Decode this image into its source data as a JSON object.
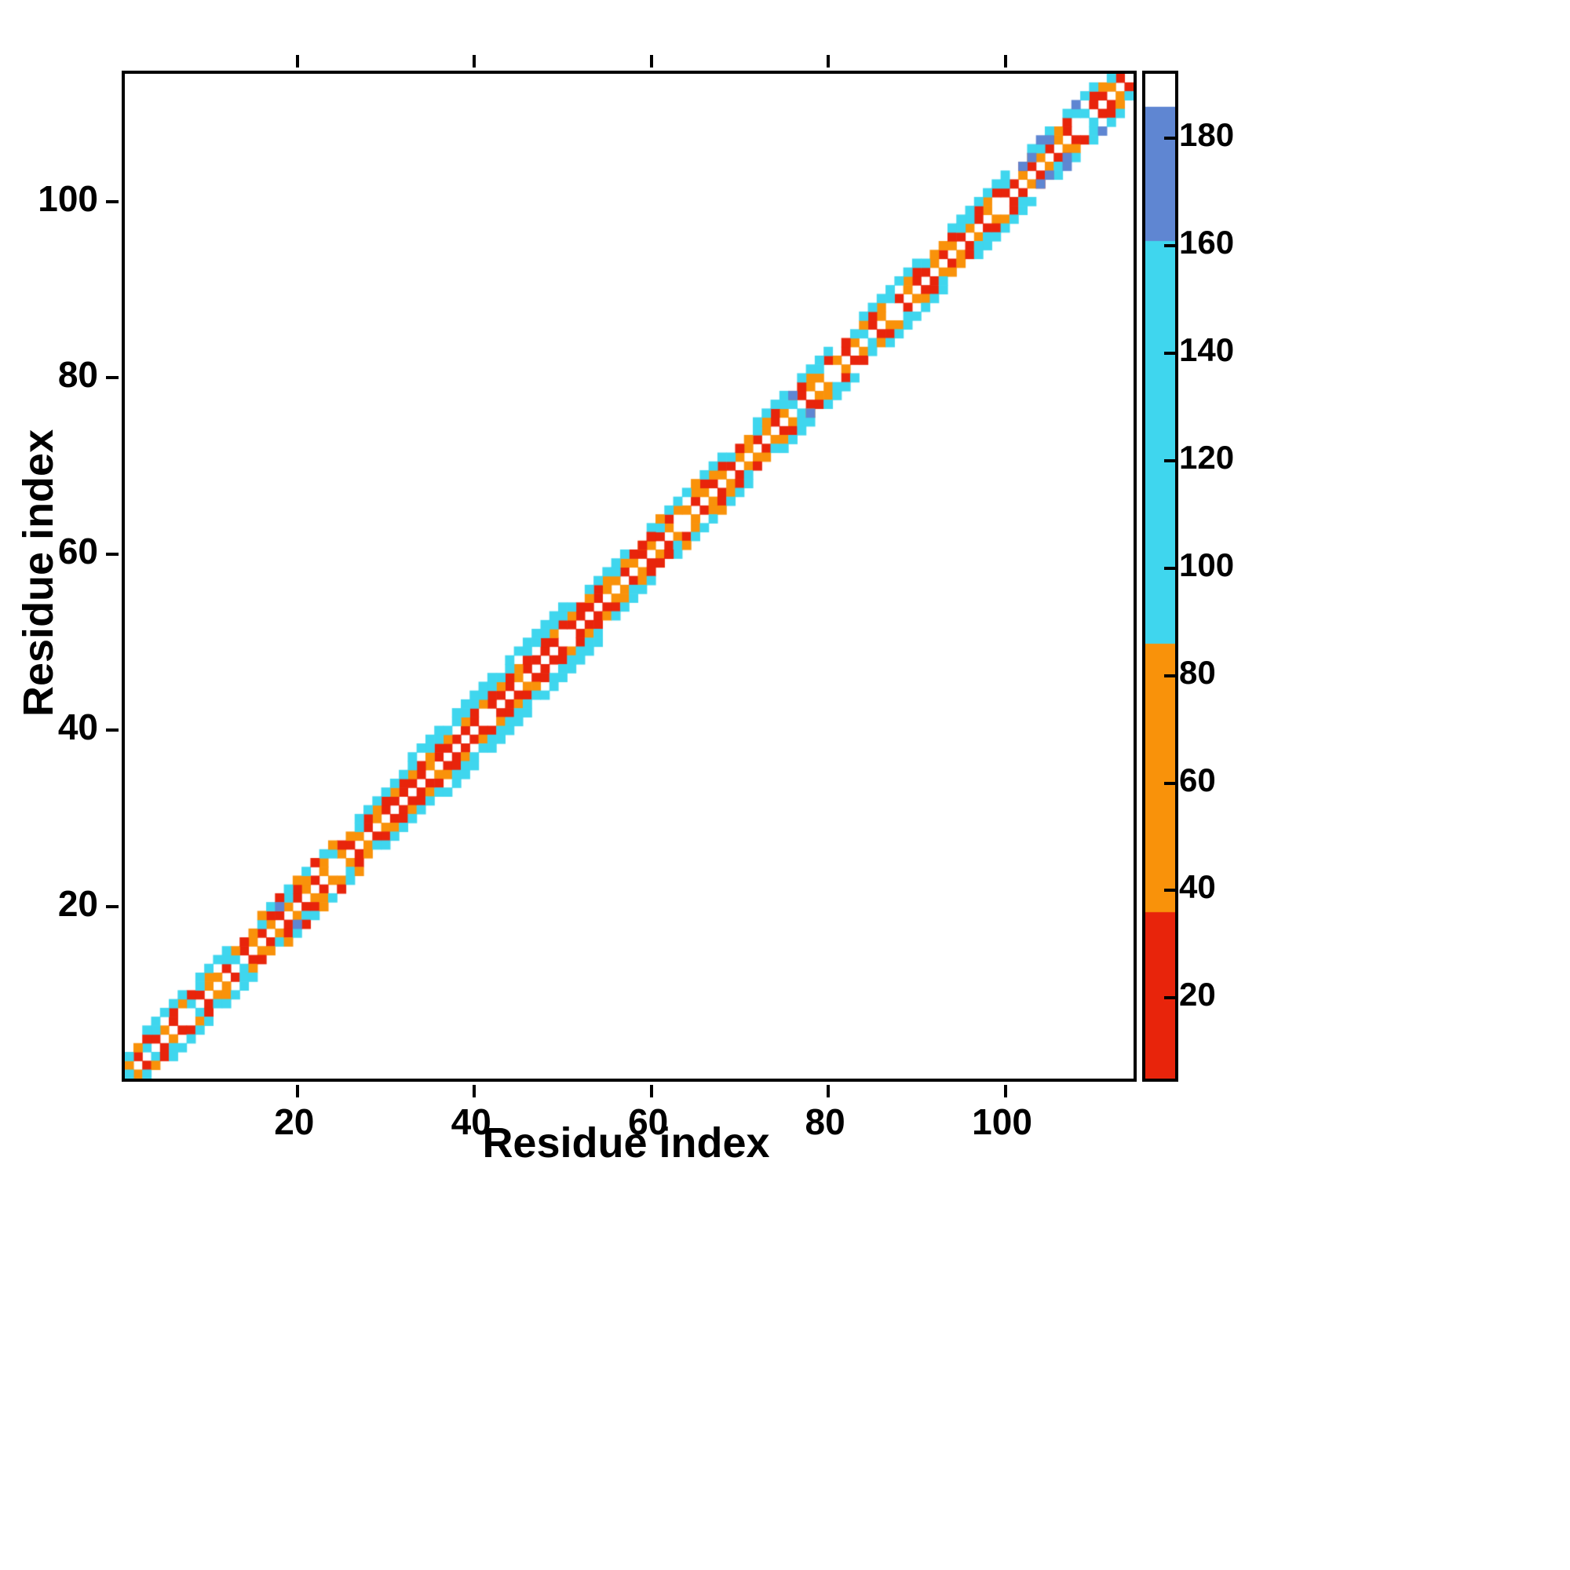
{
  "figure": {
    "background": "#ffffff",
    "axis_color": "#000000"
  },
  "chart_data": {
    "type": "heatmap",
    "title": "",
    "xlabel": "Residue index",
    "ylabel": "Residue index",
    "x_ticks": [
      20,
      40,
      60,
      80,
      100
    ],
    "y_ticks": [
      20,
      40,
      60,
      80,
      100
    ],
    "residue_min": 1,
    "residue_max": 114,
    "grid": false,
    "colorbar": {
      "position": "right",
      "vmin": 5,
      "vmax": 192,
      "ticks": [
        20,
        40,
        60,
        80,
        100,
        120,
        140,
        160,
        180
      ],
      "stops": [
        {
          "max": 36,
          "color": "#e8240b"
        },
        {
          "max": 86,
          "color": "#f9920a"
        },
        {
          "max": 161,
          "color": "#3fd6ee"
        },
        {
          "max": 186,
          "color": "#5f86d2"
        },
        {
          "max": 999,
          "color": "#ffffff"
        }
      ]
    },
    "bands": [
      {
        "offset": 1,
        "runs": [
          {
            "from": 1,
            "to": 15,
            "pattern": [
              60,
              25,
              95,
              30,
              65,
              22,
              58,
              100,
              28,
              62
            ],
            "skip": [
              7
            ]
          },
          {
            "from": 16,
            "to": 30,
            "pattern": [
              25,
              65,
              20,
              60,
              30,
              70,
              22,
              55
            ],
            "skip": [
              24
            ]
          },
          {
            "from": 31,
            "to": 55,
            "pattern": [
              18,
              25,
              30,
              22,
              60,
              24,
              20,
              32,
              26,
              28
            ],
            "skip": [
              41,
              50
            ]
          },
          {
            "from": 56,
            "to": 70,
            "pattern": [
              60,
              22,
              65,
              28,
              58,
              25,
              70,
              20
            ],
            "skip": [
              63
            ]
          },
          {
            "from": 71,
            "to": 90,
            "pattern": [
              62,
              30,
              55,
              25,
              68,
              95,
              24,
              60
            ],
            "skip": [
              80,
              87
            ]
          },
          {
            "from": 91,
            "to": 113,
            "pattern": [
              25,
              60,
              30,
              65,
              22,
              70,
              28,
              58,
              100,
              24
            ],
            "skip": [
              99,
              108
            ]
          }
        ]
      },
      {
        "offset": 2,
        "runs": [
          {
            "from": 1,
            "to": 14,
            "pattern": [
              95,
              60,
              25,
              100,
              65,
              30,
              58,
              22
            ],
            "skip": [
              5,
              11
            ]
          },
          {
            "from": 15,
            "to": 30,
            "pattern": [
              60,
              95,
              28,
              65,
              105,
              25,
              70,
              30
            ],
            "skip": [
              22
            ]
          },
          {
            "from": 31,
            "to": 55,
            "pattern": [
              65,
              25,
              60,
              30,
              70,
              22,
              58,
              28
            ],
            "skip": [
              38,
              47
            ]
          },
          {
            "from": 56,
            "to": 72,
            "pattern": [
              95,
              60,
              25,
              65,
              30,
              100,
              22,
              70
            ],
            "skip": [
              64
            ]
          },
          {
            "from": 73,
            "to": 92,
            "pattern": [
              60,
              28,
              95,
              65,
              25,
              58,
              105,
              30
            ],
            "skip": [
              81,
              88
            ]
          },
          {
            "from": 93,
            "to": 112,
            "pattern": [
              65,
              30,
              60,
              100,
              25,
              70,
              28,
              95
            ],
            "skip": [
              101,
              109
            ]
          }
        ]
      },
      {
        "offset": 3,
        "runs": [
          {
            "from": 3,
            "to": 12,
            "pattern": [
              100,
              105,
              95,
              110
            ],
            "skip": [
              8
            ]
          },
          {
            "from": 16,
            "to": 24,
            "pattern": [
              60,
              100,
              25,
              95
            ],
            "skip": []
          },
          {
            "from": 27,
            "to": 57,
            "pattern": [
              105,
              95,
              110,
              100,
              98,
              112,
              96,
              108
            ],
            "skip": [
              34,
              45,
              52
            ]
          },
          {
            "from": 60,
            "to": 68,
            "pattern": [
              100,
              60,
              95,
              105
            ],
            "skip": []
          },
          {
            "from": 72,
            "to": 80,
            "pattern": [
              95,
              100,
              105,
              98
            ],
            "skip": [
              76
            ]
          },
          {
            "from": 84,
            "to": 90,
            "pattern": [
              100,
              95,
              105,
              98
            ],
            "skip": []
          },
          {
            "from": 94,
            "to": 100,
            "pattern": [
              105,
              98,
              100,
              95
            ],
            "skip": []
          },
          {
            "from": 103,
            "to": 110,
            "pattern": [
              100,
              170,
              110,
              95
            ],
            "skip": [
              106
            ]
          }
        ]
      },
      {
        "offset": 4,
        "runs": [
          {
            "from": 33,
            "to": 42,
            "pattern": [
              105,
              98,
              110,
              100
            ],
            "skip": [
              37
            ]
          },
          {
            "from": 44,
            "to": 50,
            "pattern": [
              95,
              108,
              102,
              100
            ],
            "skip": []
          }
        ]
      }
    ],
    "extra_cells": [
      [
        1,
        1,
        100
      ],
      [
        18,
        20,
        172
      ],
      [
        76,
        78,
        168
      ],
      [
        59,
        61,
        20
      ],
      [
        60,
        62,
        22
      ],
      [
        95,
        97,
        108
      ],
      [
        102,
        104,
        174
      ],
      [
        103,
        105,
        176
      ],
      [
        105,
        107,
        170
      ]
    ]
  }
}
